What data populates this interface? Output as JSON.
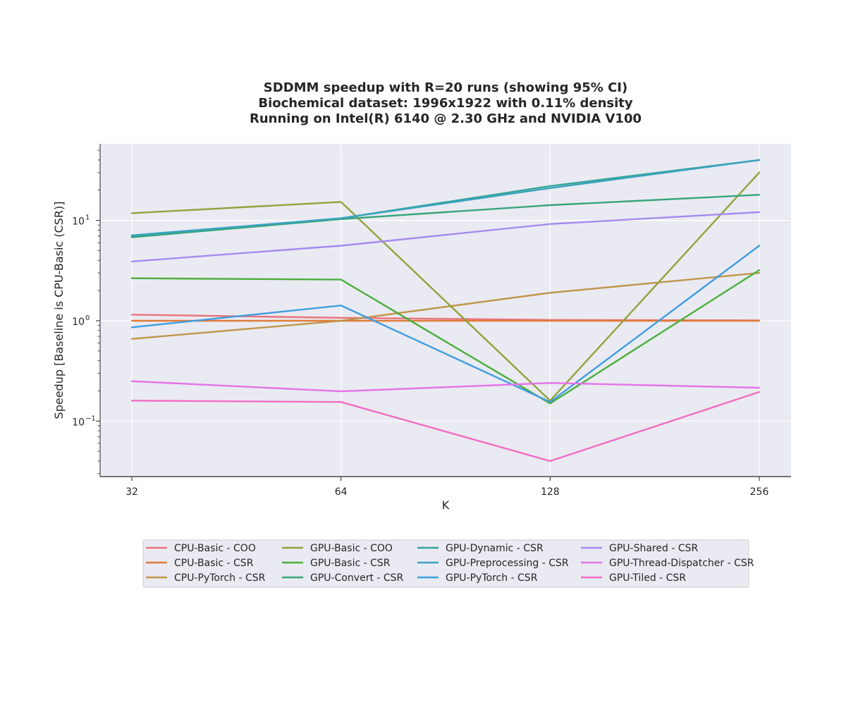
{
  "chart_data": {
    "type": "line",
    "title_lines": [
      "SDDMM speedup with R=20 runs (showing 95% CI)",
      "Biochemical dataset: 1996x1922 with 0.11% density",
      "Running on Intel(R) 6140 @ 2.30 GHz and NVIDIA V100"
    ],
    "xlabel": "K",
    "ylabel": "Speedup [Baseline is CPU-Basic (CSR)]",
    "x": [
      32,
      64,
      128,
      256
    ],
    "x_scale": "log2",
    "y_scale": "log10",
    "ylim": [
      0.028,
      58
    ],
    "y_ticks": [
      {
        "value": 0.1,
        "base": "10",
        "exp": "−1"
      },
      {
        "value": 1,
        "base": "10",
        "exp": "0"
      },
      {
        "value": 10,
        "base": "10",
        "exp": "1"
      }
    ],
    "grid": true,
    "legend_placement": "below plot, 4 columns",
    "series": [
      {
        "name": "CPU-Basic - COO",
        "color": "#e8747c",
        "values": [
          1.15,
          1.07,
          1.02,
          1.01
        ]
      },
      {
        "name": "CPU-Basic - CSR",
        "color": "#e07b39",
        "values": [
          1.0,
          1.0,
          1.0,
          1.0
        ]
      },
      {
        "name": "CPU-PyTorch - CSR",
        "color": "#c0954a",
        "values": [
          0.66,
          1.0,
          1.9,
          3.0
        ]
      },
      {
        "name": "GPU-Basic - COO",
        "color": "#92a23b",
        "values": [
          11.8,
          15.3,
          0.16,
          30.0
        ]
      },
      {
        "name": "GPU-Basic - CSR",
        "color": "#4aaf3d",
        "values": [
          2.65,
          2.57,
          0.15,
          3.2
        ]
      },
      {
        "name": "GPU-Convert - CSR",
        "color": "#36a57a",
        "values": [
          6.8,
          10.3,
          14.2,
          18.0
        ]
      },
      {
        "name": "GPU-Dynamic - CSR",
        "color": "#35a59a",
        "values": [
          7.0,
          10.5,
          22.0,
          40.0
        ]
      },
      {
        "name": "GPU-Preprocessing - CSR",
        "color": "#3ba3c0",
        "values": [
          7.1,
          10.5,
          21.0,
          40.0
        ]
      },
      {
        "name": "GPU-PyTorch - CSR",
        "color": "#3f9de0",
        "values": [
          0.86,
          1.42,
          0.155,
          5.6
        ]
      },
      {
        "name": "GPU-Shared - CSR",
        "color": "#a68af0",
        "values": [
          3.9,
          5.6,
          9.2,
          12.1
        ]
      },
      {
        "name": "GPU-Thread-Dispatcher - CSR",
        "color": "#e572ea",
        "values": [
          0.25,
          0.198,
          0.24,
          0.215
        ]
      },
      {
        "name": "GPU-Tiled - CSR",
        "color": "#f26dc4",
        "values": [
          0.16,
          0.155,
          0.04,
          0.195
        ]
      }
    ]
  }
}
